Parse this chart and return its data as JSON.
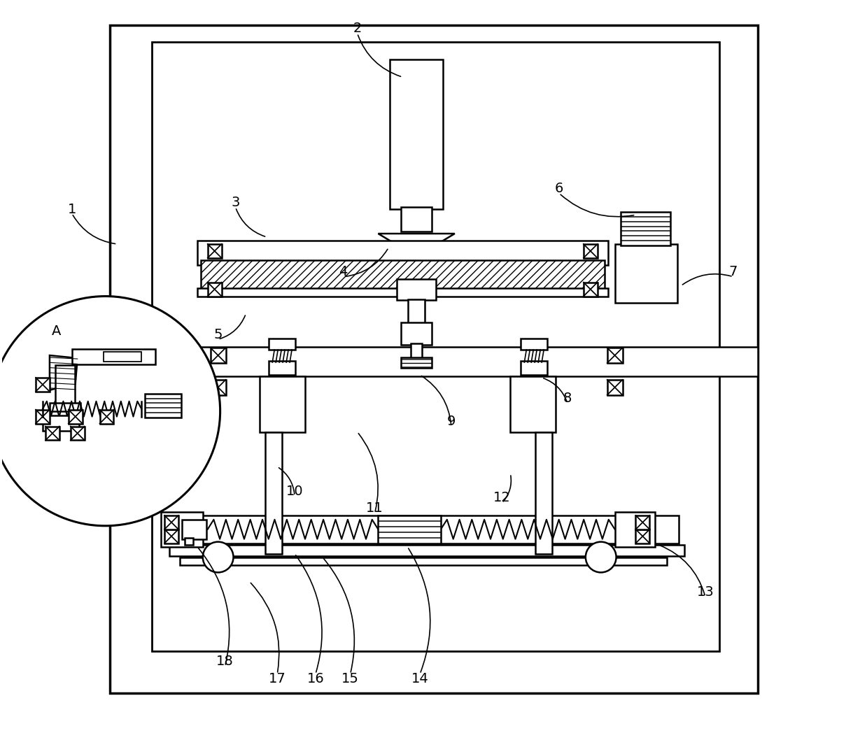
{
  "bg_color": "#ffffff",
  "line_color": "#000000",
  "lw": 1.8,
  "fig_width": 12.39,
  "fig_height": 10.48
}
